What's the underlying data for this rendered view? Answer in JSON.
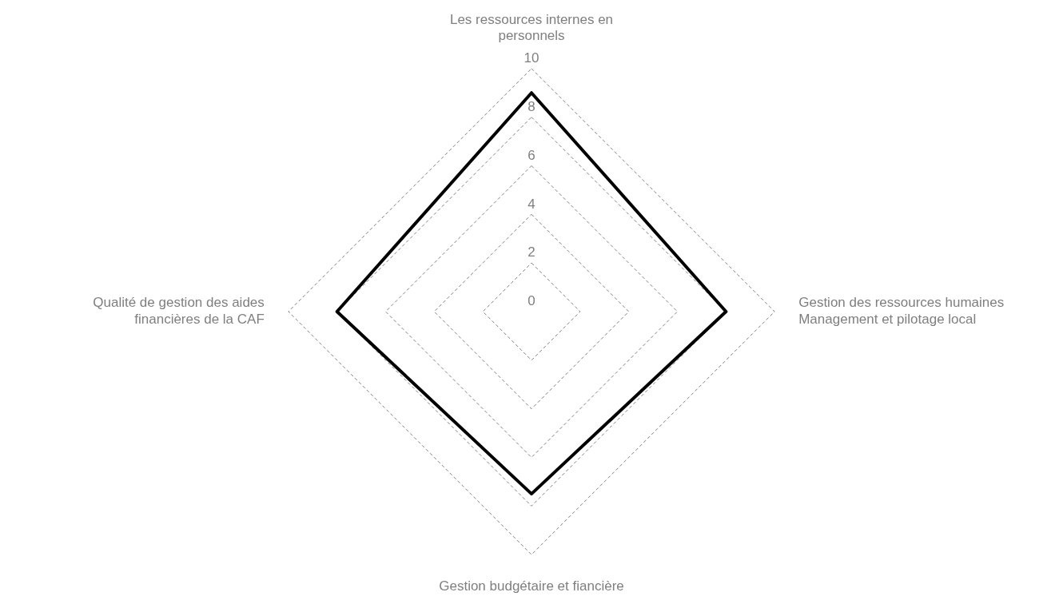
{
  "chart_data": {
    "type": "radar",
    "categories": [
      "Les ressources internes en personnels",
      "Gestion des ressources humaines Management et pilotage local",
      "Gestion budgétaire et fiancière",
      "Qualité de gestion des aides financières de la CAF"
    ],
    "series": [
      {
        "color": "#000000",
        "values": [
          9,
          8,
          7.5,
          8
        ]
      }
    ],
    "ylim": [
      0,
      10
    ],
    "yticks": [
      0,
      2,
      4,
      6,
      8,
      10
    ],
    "grid": true,
    "legend": false,
    "marker": "none",
    "line_style": "solid"
  }
}
